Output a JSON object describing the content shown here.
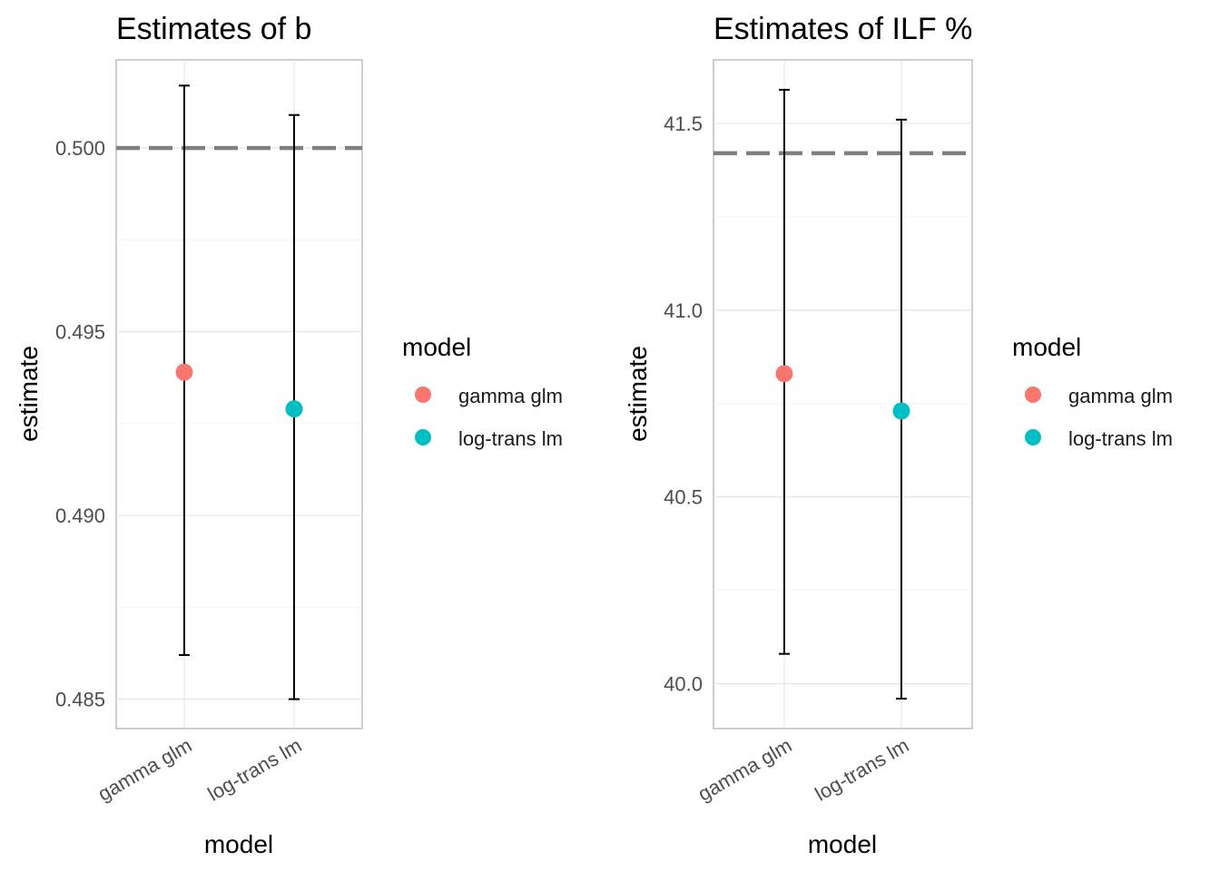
{
  "chart_data": [
    {
      "type": "scatter",
      "title": "Estimates of b",
      "xlabel": "model",
      "ylabel": "estimate",
      "categories": [
        "gamma glm",
        "log-trans lm"
      ],
      "ylim": [
        0.4842,
        0.5024
      ],
      "yticks": [
        0.485,
        0.49,
        0.495,
        0.5
      ],
      "ytick_labels": [
        "0.485",
        "0.490",
        "0.495",
        "0.500"
      ],
      "reference_line": 0.5,
      "series": [
        {
          "name": "gamma glm",
          "color": "#F8766D",
          "x": "gamma glm",
          "value": 0.4939,
          "lower": 0.4862,
          "upper": 0.5017
        },
        {
          "name": "log-trans lm",
          "color": "#00BFC4",
          "x": "log-trans lm",
          "value": 0.4929,
          "lower": 0.485,
          "upper": 0.5009
        }
      ],
      "legend": {
        "title": "model",
        "position": "right",
        "entries": [
          "gamma glm",
          "log-trans lm"
        ]
      },
      "grid": true
    },
    {
      "type": "scatter",
      "title": "Estimates of ILF %",
      "xlabel": "model",
      "ylabel": "estimate",
      "categories": [
        "gamma glm",
        "log-trans lm"
      ],
      "ylim": [
        39.88,
        41.67
      ],
      "yticks": [
        40.0,
        40.5,
        41.0,
        41.5
      ],
      "ytick_labels": [
        "40.0",
        "40.5",
        "41.0",
        "41.5"
      ],
      "reference_line": 41.42,
      "series": [
        {
          "name": "gamma glm",
          "color": "#F8766D",
          "x": "gamma glm",
          "value": 40.83,
          "lower": 40.08,
          "upper": 41.59
        },
        {
          "name": "log-trans lm",
          "color": "#00BFC4",
          "x": "log-trans lm",
          "value": 40.73,
          "lower": 39.96,
          "upper": 41.51
        }
      ],
      "legend": {
        "title": "model",
        "position": "right",
        "entries": [
          "gamma glm",
          "log-trans lm"
        ]
      },
      "grid": true
    }
  ]
}
